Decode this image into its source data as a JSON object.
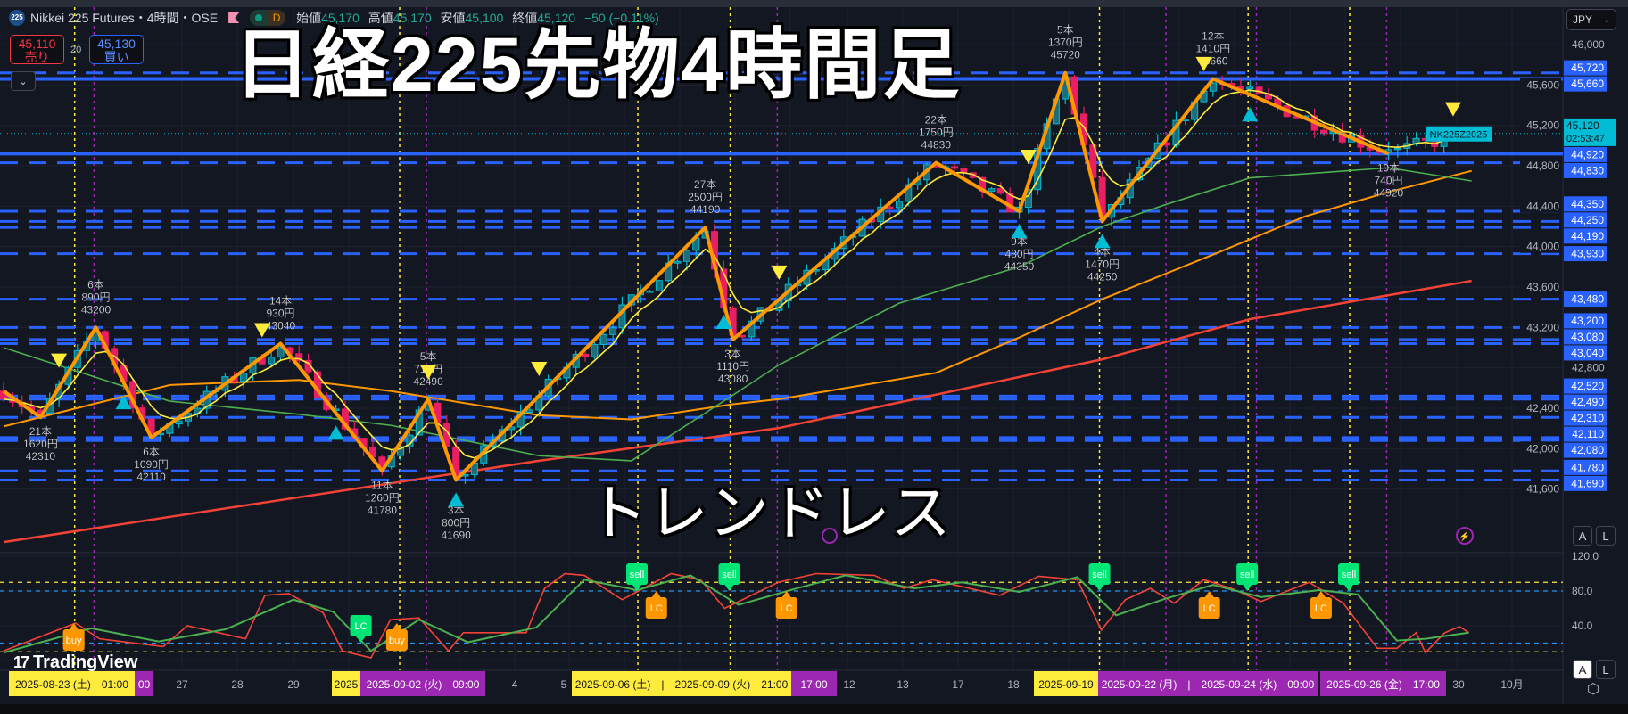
{
  "header": {
    "symbol_badge": "225",
    "symbol_title": "Nikkei 225 Futures・4時間・OSE",
    "market_status": "D",
    "ohlc": [
      {
        "label": "始値",
        "value": "45,170"
      },
      {
        "label": "高値",
        "value": "45,170"
      },
      {
        "label": "安値",
        "value": "45,100"
      },
      {
        "label": "終値",
        "value": "45,120"
      }
    ],
    "change": "−50 (−0.11%)"
  },
  "trade": {
    "sell_price": "45,110",
    "sell_label": "売り",
    "spread": "20",
    "buy_price": "45,130",
    "buy_label": "買い"
  },
  "overlay": {
    "title": "日経225先物4時間足",
    "subtitle": "トレンドレス"
  },
  "price_axis": {
    "currency": "JPY",
    "ticks": [
      "46,000",
      "45,600",
      "45,200",
      "44,800",
      "44,400",
      "44,000",
      "43,600",
      "43,200",
      "42,800",
      "42,400",
      "42,000",
      "41,600"
    ],
    "symbol_tag": "NK225Z2025",
    "last_price": "45,120",
    "countdown": "02:53:47",
    "auto_label": "A",
    "log_label": "L"
  },
  "osc_axis": {
    "ticks": [
      "120.0",
      "80.0",
      "40.0"
    ],
    "auto_label": "A",
    "log_label": "L"
  },
  "time_axis": {
    "labels": [
      "2025-08-23 (土)　01:00",
      "00",
      "27",
      "28",
      "29",
      "2025",
      "2025-09-02 (火)　09:00",
      "4",
      "5",
      "2025-09-06 (土)　|　2025-09-09 (火)　21:00",
      "17:00",
      "12",
      "13",
      "17",
      "18",
      "2025-09-19",
      "2025-09-22 (月)　|　2025-09-24 (水)　09:00",
      "2025-09-26 (金)　17:00",
      "30",
      "10月"
    ]
  },
  "branding": {
    "logo_text": "TradingView"
  },
  "colors": {
    "background": "#131722",
    "level_line": "#2962ff",
    "zigzag": "#ff9800",
    "candle_up": "#00bcd4",
    "candle_down": "#e91e63",
    "ma_fast": "#ffeb3b",
    "ma_mid": "#4caf50",
    "ma_slow": "#ff9800",
    "ma_long": "#f44336",
    "osc_fast": "#f44336",
    "osc_slow": "#4caf50",
    "signal_sell": "#00e676",
    "signal_lc": "#ff9800",
    "session_a": "#ffeb3b",
    "session_b": "#9c27b0"
  },
  "chart_data": {
    "type": "candlestick",
    "x_unit": "bar",
    "ylim": [
      41300,
      46100
    ],
    "levels": [
      {
        "price": 45720,
        "label": "45,720",
        "style": "dashed"
      },
      {
        "price": 45660,
        "label": "45,660",
        "style": "solid"
      },
      {
        "price": 44920,
        "label": "44,920",
        "style": "solid"
      },
      {
        "price": 44830,
        "label": "44,830",
        "style": "dashed"
      },
      {
        "price": 44350,
        "label": "44,350",
        "style": "dashed"
      },
      {
        "price": 44250,
        "label": "44,250",
        "style": "dashed"
      },
      {
        "price": 44190,
        "label": "44,190",
        "style": "dashed"
      },
      {
        "price": 43930,
        "label": "43,930",
        "style": "dashed"
      },
      {
        "price": 43480,
        "label": "43,480",
        "style": "dashed"
      },
      {
        "price": 43200,
        "label": "43,200",
        "style": "dashed"
      },
      {
        "price": 43080,
        "label": "43,080",
        "style": "dashed"
      },
      {
        "price": 43040,
        "label": "43,040",
        "style": "dashed"
      },
      {
        "price": 42520,
        "label": "42,520",
        "style": "dashed"
      },
      {
        "price": 42490,
        "label": "42,490",
        "style": "dashed"
      },
      {
        "price": 42310,
        "label": "42,310",
        "style": "dashed"
      },
      {
        "price": 42110,
        "label": "42,110",
        "style": "dashed"
      },
      {
        "price": 42080,
        "label": "42,080",
        "style": "dashed"
      },
      {
        "price": 41780,
        "label": "41,780",
        "style": "dashed"
      },
      {
        "price": 41690,
        "label": "41,690",
        "style": "dashed"
      }
    ],
    "zigzag": [
      {
        "bar": 0,
        "price": 42570
      },
      {
        "bar": 4,
        "price": 42310,
        "type": "low",
        "bars": "21本",
        "range": "1620円",
        "label": "42310"
      },
      {
        "bar": 10,
        "price": 43200,
        "type": "high",
        "bars": "6本",
        "range": "890円",
        "label": "43200"
      },
      {
        "bar": 16,
        "price": 42110,
        "type": "low",
        "bars": "6本",
        "range": "1090円",
        "label": "42110"
      },
      {
        "bar": 30,
        "price": 43040,
        "type": "high",
        "bars": "14本",
        "range": "930円",
        "label": "43040"
      },
      {
        "bar": 41,
        "price": 41780,
        "type": "low",
        "bars": "11本",
        "range": "1260円",
        "label": "41780"
      },
      {
        "bar": 46,
        "price": 42490,
        "type": "high",
        "bars": "5本",
        "range": "710円",
        "label": "42490"
      },
      {
        "bar": 49,
        "price": 41690,
        "type": "low",
        "bars": "3本",
        "range": "800円",
        "label": "41690"
      },
      {
        "bar": 76,
        "price": 44190,
        "type": "high",
        "bars": "27本",
        "range": "2500円",
        "label": "44190"
      },
      {
        "bar": 79,
        "price": 43080,
        "type": "low",
        "bars": "3本",
        "range": "1110円",
        "label": "43080"
      },
      {
        "bar": 101,
        "price": 44830,
        "type": "high",
        "bars": "22本",
        "range": "1750円",
        "label": "44830"
      },
      {
        "bar": 110,
        "price": 44350,
        "type": "low",
        "bars": "9本",
        "range": "480円",
        "label": "44350"
      },
      {
        "bar": 115,
        "price": 45720,
        "type": "high",
        "bars": "5本",
        "range": "1370円",
        "label": "45720"
      },
      {
        "bar": 119,
        "price": 44250,
        "type": "low",
        "bars": "4本",
        "range": "1470円",
        "label": "44250"
      },
      {
        "bar": 131,
        "price": 45660,
        "type": "high",
        "bars": "12本",
        "range": "1410円",
        "label": "45660"
      },
      {
        "bar": 150,
        "price": 44920,
        "type": "low",
        "bars": "19本",
        "range": "740円",
        "label": "44920"
      }
    ],
    "last_bar": 158,
    "last_close": 45120,
    "ma_mid": [
      [
        0,
        43000
      ],
      [
        18,
        42470
      ],
      [
        32,
        42340
      ],
      [
        42,
        42230
      ],
      [
        58,
        41930
      ],
      [
        68,
        41880
      ],
      [
        79,
        42530
      ],
      [
        84,
        42830
      ],
      [
        97,
        43440
      ],
      [
        110,
        43800
      ],
      [
        119,
        44200
      ],
      [
        126,
        44420
      ],
      [
        135,
        44680
      ],
      [
        150,
        44780
      ],
      [
        159,
        44650
      ]
    ],
    "ma_slow": [
      [
        0,
        42220
      ],
      [
        18,
        42630
      ],
      [
        32,
        42680
      ],
      [
        42,
        42570
      ],
      [
        58,
        42330
      ],
      [
        68,
        42290
      ],
      [
        79,
        42440
      ],
      [
        84,
        42490
      ],
      [
        101,
        42750
      ],
      [
        110,
        43100
      ],
      [
        119,
        43480
      ],
      [
        131,
        43920
      ],
      [
        141,
        44300
      ],
      [
        150,
        44540
      ],
      [
        159,
        44750
      ]
    ],
    "ma_long": [
      [
        0,
        41075
      ],
      [
        58,
        41880
      ],
      [
        84,
        42205
      ],
      [
        119,
        42884
      ],
      [
        135,
        43282
      ],
      [
        159,
        43661
      ]
    ],
    "sell_signals": [
      6,
      28,
      46,
      58,
      84,
      111,
      130,
      157
    ],
    "buy_signals": [
      13,
      36,
      49,
      78,
      110,
      119,
      135
    ],
    "session_markers_a": [
      7.7,
      42.9,
      68.7,
      78.7,
      118.7,
      134.8,
      145.8
    ],
    "session_markers_b": [
      9.8,
      45.8,
      83.8,
      125.9,
      135.7,
      149.8
    ],
    "oscillator": {
      "ylim": [
        0,
        125
      ],
      "bands": [
        {
          "value": 90,
          "color": "#ffeb3b"
        },
        {
          "value": 80,
          "color": "#2196f3"
        },
        {
          "value": 20,
          "color": "#2196f3"
        },
        {
          "value": 10,
          "color": "#ffeb3b"
        }
      ],
      "fast": [
        [
          0,
          11
        ],
        [
          7.8,
          43
        ],
        [
          10.4,
          25
        ],
        [
          17.3,
          16
        ],
        [
          19.9,
          40
        ],
        [
          26.2,
          25
        ],
        [
          28.3,
          75
        ],
        [
          30.9,
          77
        ],
        [
          34.6,
          55
        ],
        [
          36.7,
          11
        ],
        [
          39.8,
          3
        ],
        [
          41.9,
          47
        ],
        [
          45,
          49
        ],
        [
          48.2,
          11
        ],
        [
          49.8,
          32
        ],
        [
          56.6,
          32
        ],
        [
          58.6,
          83
        ],
        [
          60.8,
          100
        ],
        [
          62.9,
          98
        ],
        [
          67,
          70
        ],
        [
          72.3,
          100
        ],
        [
          75.5,
          93
        ],
        [
          78.1,
          60
        ],
        [
          83.9,
          90
        ],
        [
          88,
          100
        ],
        [
          94.3,
          98
        ],
        [
          97.5,
          83
        ],
        [
          100.6,
          93
        ],
        [
          107.9,
          75
        ],
        [
          112.1,
          97
        ],
        [
          116.3,
          93
        ],
        [
          118.9,
          35
        ],
        [
          121.5,
          70
        ],
        [
          124.2,
          83
        ],
        [
          126.8,
          66
        ],
        [
          130,
          93
        ],
        [
          133,
          83
        ],
        [
          136.2,
          68
        ],
        [
          141.4,
          90
        ],
        [
          145.1,
          66
        ],
        [
          148.8,
          14
        ],
        [
          150.9,
          14
        ],
        [
          153,
          32
        ],
        [
          154,
          9
        ],
        [
          156.1,
          32
        ],
        [
          157.7,
          39
        ],
        [
          158.7,
          32
        ]
      ],
      "slow": [
        [
          0,
          9
        ],
        [
          9.5,
          37
        ],
        [
          16.8,
          22
        ],
        [
          24.1,
          36
        ],
        [
          31.4,
          70
        ],
        [
          35.7,
          56
        ],
        [
          39.8,
          11
        ],
        [
          45,
          47
        ],
        [
          50.3,
          21
        ],
        [
          57.7,
          38
        ],
        [
          62.9,
          93
        ],
        [
          68.6,
          81
        ],
        [
          74.4,
          98
        ],
        [
          79.6,
          64
        ],
        [
          85.9,
          83
        ],
        [
          91.2,
          98
        ],
        [
          98.6,
          83
        ],
        [
          103.8,
          90
        ],
        [
          110,
          79
        ],
        [
          116.3,
          96
        ],
        [
          120.5,
          52
        ],
        [
          125.8,
          71
        ],
        [
          131,
          87
        ],
        [
          136.2,
          73
        ],
        [
          142.5,
          81
        ],
        [
          146.7,
          76
        ],
        [
          150.9,
          23
        ],
        [
          154,
          25
        ],
        [
          158.7,
          32
        ]
      ],
      "signals": [
        {
          "bar": 68.6,
          "text": "sell",
          "kind": "sell"
        },
        {
          "bar": 78.6,
          "text": "sell",
          "kind": "sell"
        },
        {
          "bar": 118.7,
          "text": "sell",
          "kind": "sell"
        },
        {
          "bar": 134.7,
          "text": "sell",
          "kind": "sell"
        },
        {
          "bar": 145.7,
          "text": "sell",
          "kind": "sell"
        },
        {
          "bar": 70.7,
          "text": "LC",
          "kind": "lc-up"
        },
        {
          "bar": 84.8,
          "text": "LC",
          "kind": "lc-up"
        },
        {
          "bar": 130.6,
          "text": "LC",
          "kind": "lc-up"
        },
        {
          "bar": 142.7,
          "text": "LC",
          "kind": "lc-up"
        },
        {
          "bar": 38.7,
          "text": "LC",
          "kind": "lc-down"
        },
        {
          "bar": 42.6,
          "text": "buy",
          "kind": "buy"
        },
        {
          "bar": 7.6,
          "text": "buy",
          "kind": "buy"
        }
      ]
    }
  }
}
